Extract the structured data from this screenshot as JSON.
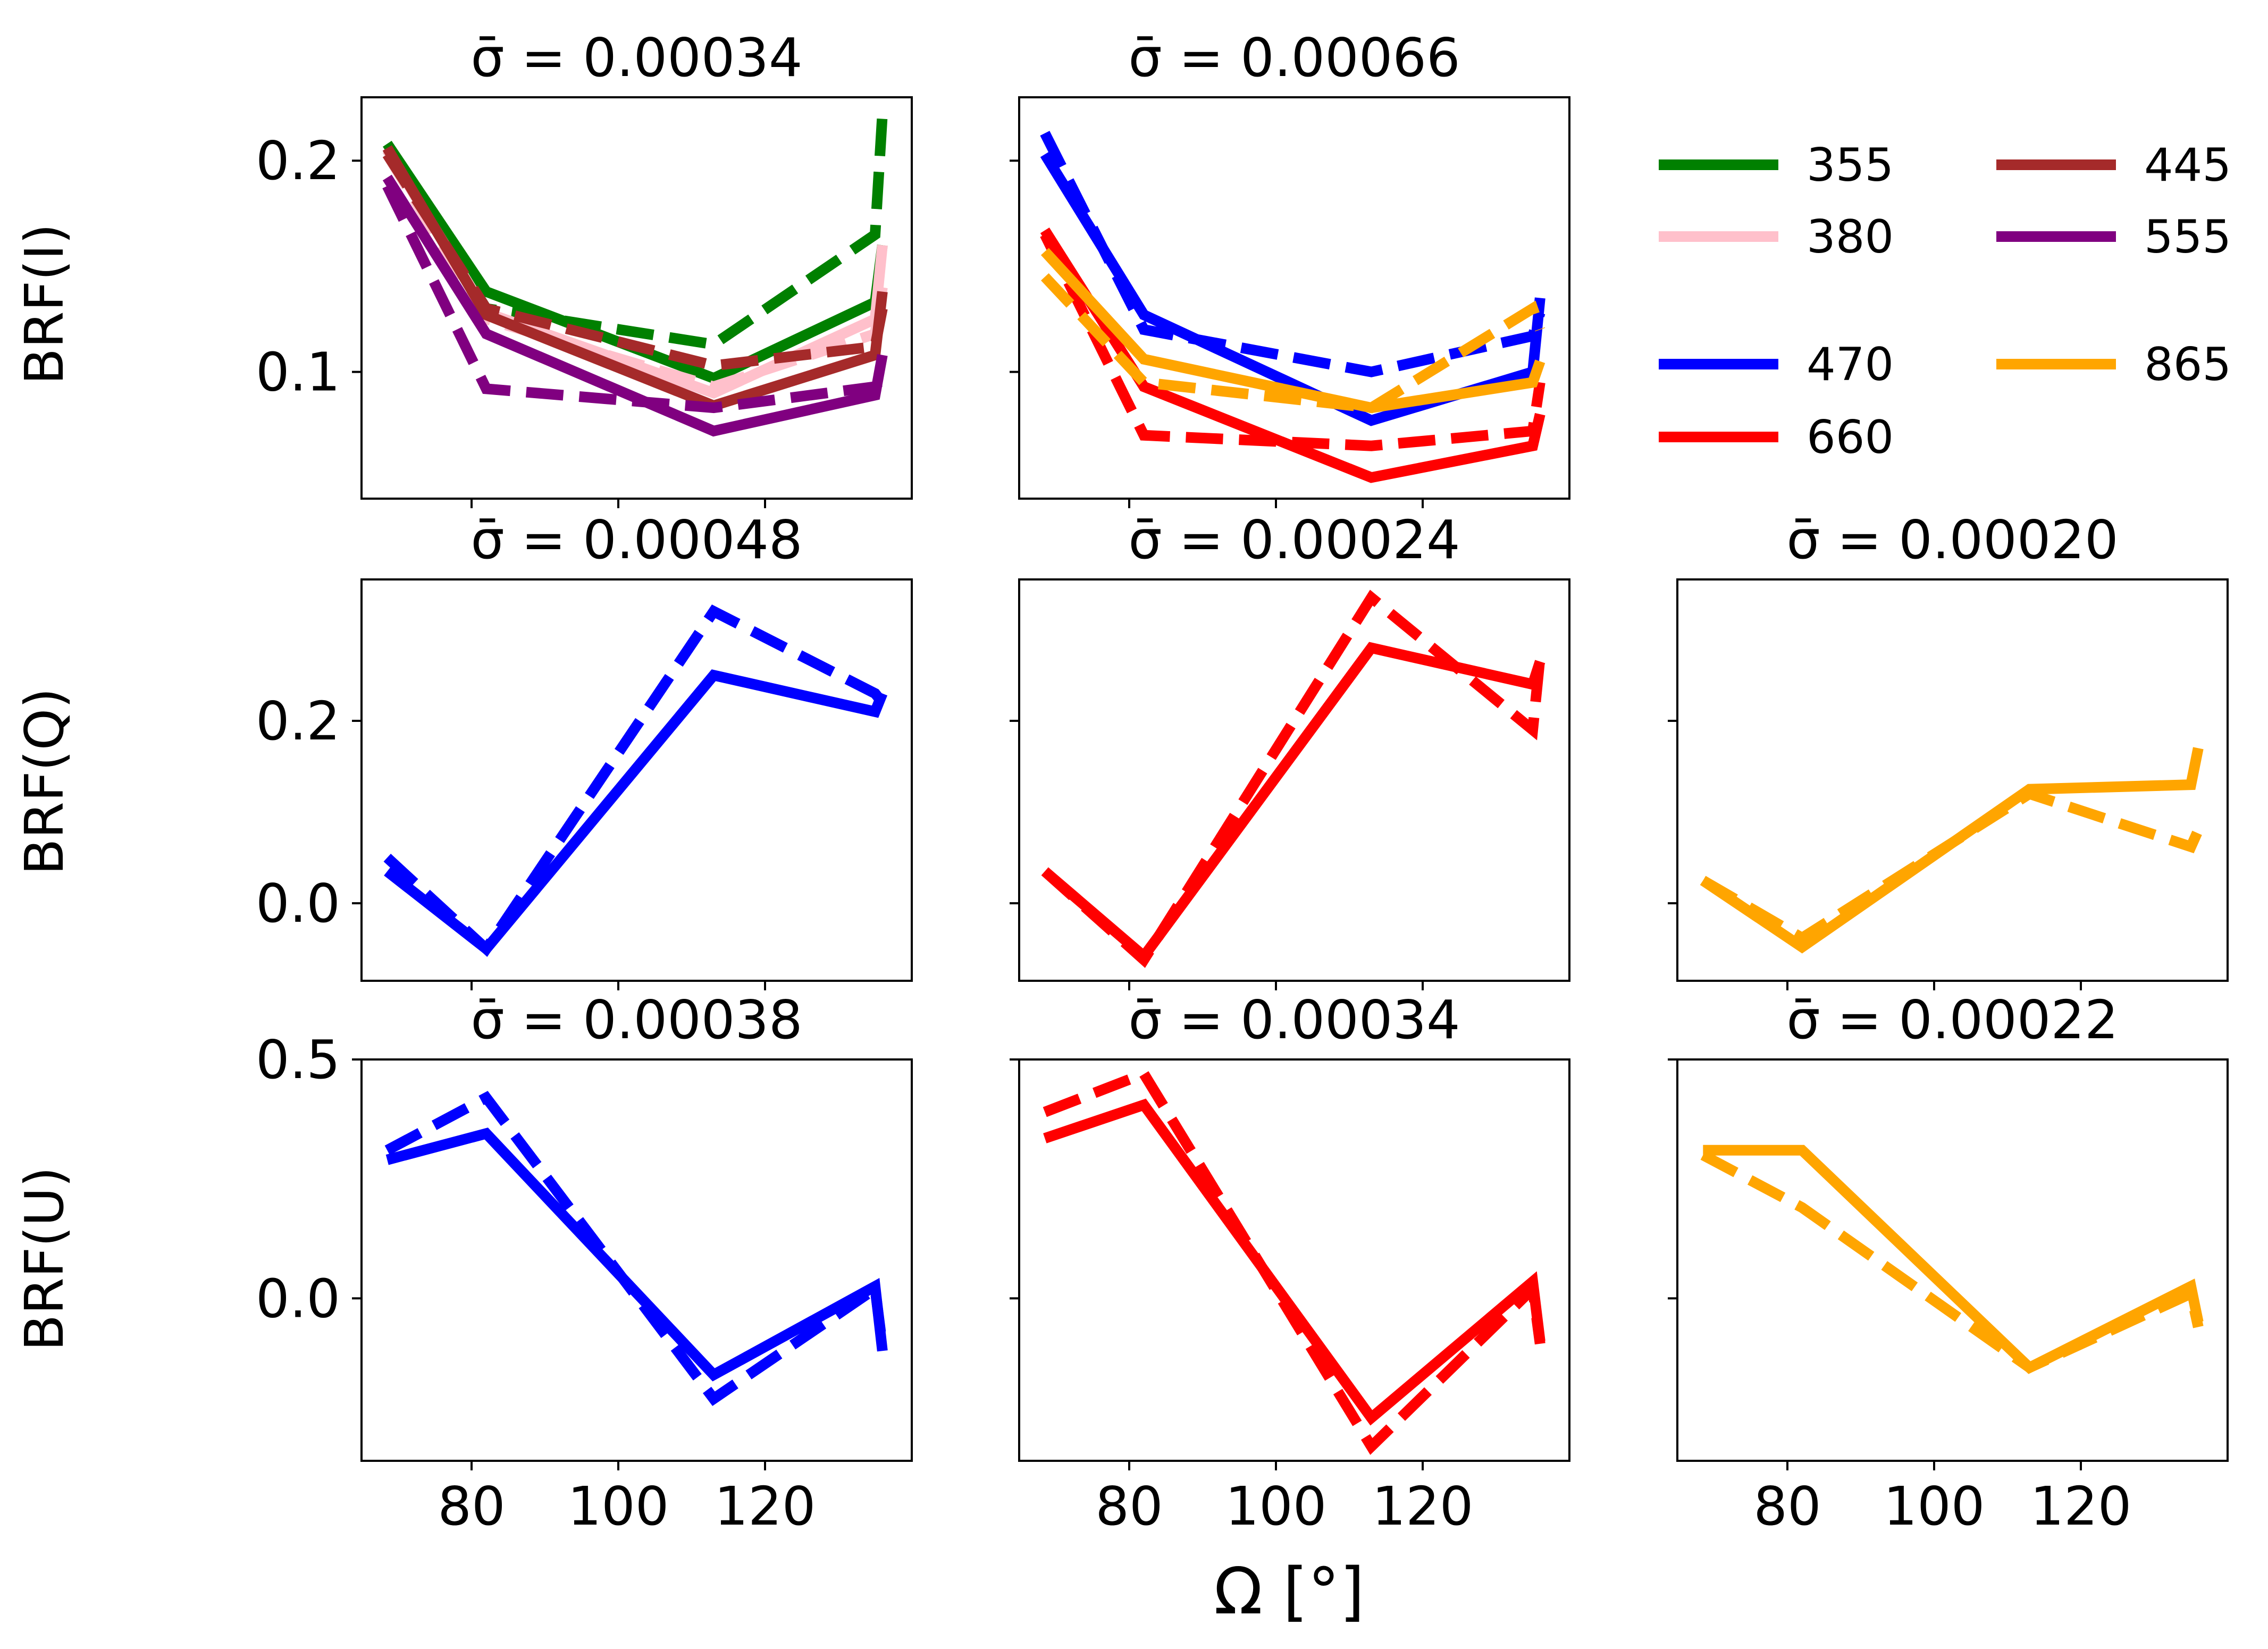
{
  "figure": {
    "x_label": "Ω [°]",
    "row_labels": [
      "BRF(I)",
      "BRF(Q)",
      "BRF(U)"
    ]
  },
  "colors": {
    "355": "#008000",
    "380": "#ffc0cb",
    "445": "#a52a2a",
    "555": "#800080",
    "470": "#0000ff",
    "660": "#ff0000",
    "865": "#ffa500"
  },
  "legend": {
    "entries": [
      {
        "label": "355",
        "key": "355"
      },
      {
        "label": "445",
        "key": "445"
      },
      {
        "label": "380",
        "key": "380"
      },
      {
        "label": "555",
        "key": "555"
      },
      {
        "label": "470",
        "key": "470"
      },
      {
        "label": "865",
        "key": "865"
      },
      {
        "label": "660",
        "key": "660"
      }
    ]
  },
  "chart_data": [
    {
      "type": "line",
      "title": "σ̄ = 0.00034",
      "row_label": "BRF(I)",
      "xlim": [
        65,
        140
      ],
      "ylim": [
        0.04,
        0.23
      ],
      "xticks": [
        80,
        100,
        120
      ],
      "xtick_labels_shown": false,
      "yticks": [
        0.1,
        0.2
      ],
      "ytick_labels": [
        "0.1",
        "0.2"
      ],
      "series": [
        {
          "name": "355",
          "color_key": "355",
          "style": "solid",
          "x": [
            68.5,
            82,
            113,
            135,
            136
          ],
          "y": [
            0.208,
            0.138,
            0.097,
            0.133,
            0.16
          ]
        },
        {
          "name": "355",
          "color_key": "355",
          "style": "dashed",
          "x": [
            68.5,
            82,
            113,
            135,
            136
          ],
          "y": [
            0.205,
            0.13,
            0.113,
            0.165,
            0.222
          ]
        },
        {
          "name": "380",
          "color_key": "380",
          "style": "solid",
          "x": [
            68.5,
            82,
            113,
            135,
            136
          ],
          "y": [
            0.205,
            0.128,
            0.09,
            0.125,
            0.16
          ]
        },
        {
          "name": "380",
          "color_key": "380",
          "style": "dashed",
          "x": [
            68.5,
            82,
            113,
            135,
            136
          ],
          "y": [
            0.203,
            0.125,
            0.093,
            0.118,
            0.14
          ]
        },
        {
          "name": "445",
          "color_key": "445",
          "style": "solid",
          "x": [
            68.5,
            82,
            113,
            135,
            136
          ],
          "y": [
            0.206,
            0.127,
            0.084,
            0.108,
            0.138
          ]
        },
        {
          "name": "445",
          "color_key": "445",
          "style": "dashed",
          "x": [
            68.5,
            82,
            113,
            135,
            136
          ],
          "y": [
            0.203,
            0.13,
            0.103,
            0.112,
            0.13
          ]
        },
        {
          "name": "555",
          "color_key": "555",
          "style": "solid",
          "x": [
            68.5,
            82,
            113,
            135,
            136
          ],
          "y": [
            0.192,
            0.118,
            0.072,
            0.089,
            0.108
          ]
        },
        {
          "name": "555",
          "color_key": "555",
          "style": "dashed",
          "x": [
            68.5,
            82,
            113,
            135,
            136
          ],
          "y": [
            0.188,
            0.092,
            0.083,
            0.093,
            0.09
          ]
        }
      ]
    },
    {
      "type": "line",
      "title": "σ̄ = 0.00066",
      "row_label": "BRF(I)",
      "xlim": [
        65,
        140
      ],
      "ylim": [
        0.04,
        0.23
      ],
      "xticks": [
        80,
        100,
        120
      ],
      "xtick_labels_shown": false,
      "yticks": [
        0.1,
        0.2
      ],
      "ytick_labels": [
        "",
        ""
      ],
      "series": [
        {
          "name": "470",
          "color_key": "470",
          "style": "solid",
          "x": [
            68.5,
            82,
            113,
            135,
            136
          ],
          "y": [
            0.203,
            0.127,
            0.077,
            0.1,
            0.135
          ]
        },
        {
          "name": "470",
          "color_key": "470",
          "style": "dashed",
          "x": [
            68.5,
            82,
            113,
            135,
            136
          ],
          "y": [
            0.213,
            0.12,
            0.1,
            0.117,
            0.128
          ]
        },
        {
          "name": "660",
          "color_key": "660",
          "style": "solid",
          "x": [
            68.5,
            82,
            113,
            135,
            136
          ],
          "y": [
            0.167,
            0.093,
            0.05,
            0.065,
            0.08
          ]
        },
        {
          "name": "660",
          "color_key": "660",
          "style": "dashed",
          "x": [
            68.5,
            82,
            113,
            135,
            136
          ],
          "y": [
            0.165,
            0.07,
            0.065,
            0.072,
            0.095
          ]
        },
        {
          "name": "865",
          "color_key": "865",
          "style": "solid",
          "x": [
            68.5,
            82,
            113,
            135,
            136
          ],
          "y": [
            0.157,
            0.106,
            0.083,
            0.095,
            0.105
          ]
        },
        {
          "name": "865",
          "color_key": "865",
          "style": "dashed",
          "x": [
            68.5,
            82,
            113,
            135,
            136
          ],
          "y": [
            0.145,
            0.095,
            0.083,
            0.13,
            0.12
          ]
        }
      ]
    },
    {
      "type": "line",
      "title": "σ̄ = 0.00048",
      "row_label": "BRF(Q)",
      "xlim": [
        65,
        140
      ],
      "ylim": [
        -0.085,
        0.355
      ],
      "xticks": [
        80,
        100,
        120
      ],
      "xtick_labels_shown": false,
      "yticks": [
        0.0,
        0.2
      ],
      "ytick_labels": [
        "0.0",
        "0.2"
      ],
      "series": [
        {
          "name": "470",
          "color_key": "470",
          "style": "solid",
          "x": [
            68.5,
            82,
            113,
            135,
            136
          ],
          "y": [
            0.035,
            -0.05,
            0.25,
            0.21,
            0.23
          ]
        },
        {
          "name": "470",
          "color_key": "470",
          "style": "dashed",
          "x": [
            68.5,
            82,
            113,
            135,
            136
          ],
          "y": [
            0.05,
            -0.05,
            0.32,
            0.23,
            0.22
          ]
        }
      ]
    },
    {
      "type": "line",
      "title": "σ̄ = 0.00024",
      "row_label": "BRF(Q)",
      "xlim": [
        65,
        140
      ],
      "ylim": [
        -0.085,
        0.355
      ],
      "xticks": [
        80,
        100,
        120
      ],
      "xtick_labels_shown": false,
      "yticks": [
        0.0,
        0.2
      ],
      "ytick_labels": [
        "",
        ""
      ],
      "series": [
        {
          "name": "660",
          "color_key": "660",
          "style": "solid",
          "x": [
            68.5,
            82,
            113,
            135,
            136
          ],
          "y": [
            0.035,
            -0.058,
            0.28,
            0.24,
            0.265
          ]
        },
        {
          "name": "660",
          "color_key": "660",
          "style": "dashed",
          "x": [
            68.5,
            82,
            113,
            135,
            136
          ],
          "y": [
            0.035,
            -0.062,
            0.335,
            0.19,
            0.27
          ]
        }
      ]
    },
    {
      "type": "line",
      "title": "σ̄ = 0.00020",
      "row_label": "BRF(Q)",
      "xlim": [
        65,
        140
      ],
      "ylim": [
        -0.085,
        0.355
      ],
      "xticks": [
        80,
        100,
        120
      ],
      "xtick_labels_shown": false,
      "yticks": [
        0.0,
        0.2
      ],
      "ytick_labels": [
        "",
        ""
      ],
      "series": [
        {
          "name": "865",
          "color_key": "865",
          "style": "solid",
          "x": [
            68.5,
            82,
            113,
            135,
            136
          ],
          "y": [
            0.025,
            -0.048,
            0.125,
            0.13,
            0.17
          ]
        },
        {
          "name": "865",
          "color_key": "865",
          "style": "dashed",
          "x": [
            68.5,
            82,
            113,
            135,
            136
          ],
          "y": [
            0.025,
            -0.038,
            0.12,
            0.062,
            0.08
          ]
        }
      ]
    },
    {
      "type": "line",
      "title": "σ̄ = 0.00038",
      "row_label": "BRF(U)",
      "xlim": [
        65,
        140
      ],
      "ylim": [
        -0.34,
        0.5
      ],
      "xticks": [
        80,
        100,
        120
      ],
      "xtick_labels": [
        "80",
        "100",
        "120"
      ],
      "yticks": [
        0.0,
        0.5
      ],
      "ytick_labels": [
        "0.0",
        "0.5"
      ],
      "series": [
        {
          "name": "470",
          "color_key": "470",
          "style": "solid",
          "x": [
            68.5,
            82,
            113,
            135,
            136
          ],
          "y": [
            0.29,
            0.345,
            -0.16,
            0.025,
            -0.11
          ]
        },
        {
          "name": "470",
          "color_key": "470",
          "style": "dashed",
          "x": [
            68.5,
            82,
            113,
            135,
            136
          ],
          "y": [
            0.31,
            0.42,
            -0.21,
            0.02,
            -0.1
          ]
        }
      ]
    },
    {
      "type": "line",
      "title": "σ̄ = 0.00034",
      "row_label": "BRF(U)",
      "xlim": [
        65,
        140
      ],
      "ylim": [
        -0.34,
        0.5
      ],
      "xticks": [
        80,
        100,
        120
      ],
      "xtick_labels": [
        "80",
        "100",
        "120"
      ],
      "yticks": [
        0.0,
        0.5
      ],
      "ytick_labels": [
        "",
        ""
      ],
      "series": [
        {
          "name": "660",
          "color_key": "660",
          "style": "solid",
          "x": [
            68.5,
            82,
            113,
            135,
            136
          ],
          "y": [
            0.335,
            0.405,
            -0.25,
            0.035,
            -0.09
          ]
        },
        {
          "name": "660",
          "color_key": "660",
          "style": "dashed",
          "x": [
            68.5,
            82,
            113,
            135,
            136
          ],
          "y": [
            0.39,
            0.47,
            -0.31,
            0.02,
            -0.095
          ]
        }
      ]
    },
    {
      "type": "line",
      "title": "σ̄ = 0.00022",
      "row_label": "BRF(U)",
      "xlim": [
        65,
        140
      ],
      "ylim": [
        -0.34,
        0.5
      ],
      "xticks": [
        80,
        100,
        120
      ],
      "xtick_labels": [
        "80",
        "100",
        "120"
      ],
      "yticks": [
        0.0,
        0.5
      ],
      "ytick_labels": [
        "",
        ""
      ],
      "series": [
        {
          "name": "865",
          "color_key": "865",
          "style": "solid",
          "x": [
            68.5,
            82,
            113,
            135,
            136
          ],
          "y": [
            0.31,
            0.31,
            -0.145,
            0.025,
            -0.05
          ]
        },
        {
          "name": "865",
          "color_key": "865",
          "style": "dashed",
          "x": [
            68.5,
            82,
            113,
            135,
            136
          ],
          "y": [
            0.3,
            0.19,
            -0.145,
            0.01,
            -0.06
          ]
        }
      ]
    }
  ]
}
